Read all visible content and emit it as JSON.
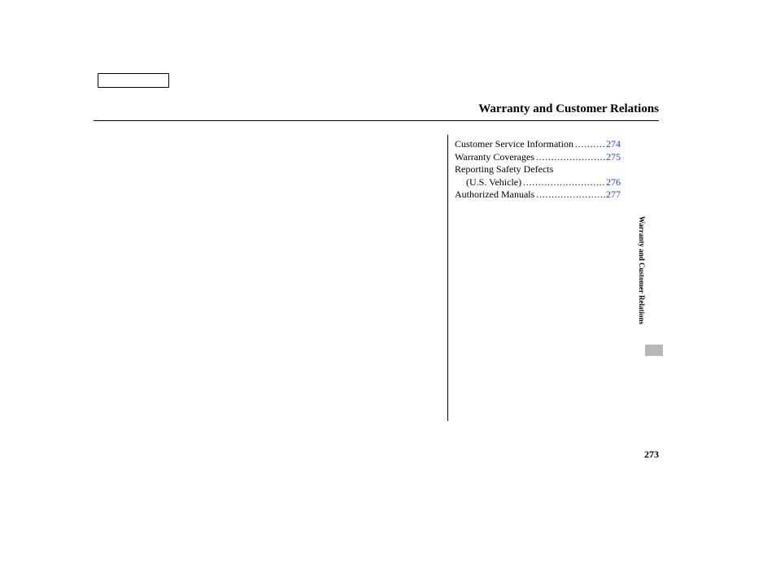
{
  "title": "Warranty and Customer Relations",
  "toc": {
    "items": [
      {
        "label": "Customer Service Information",
        "page": "274",
        "indent": false,
        "dots": true
      },
      {
        "label": "Warranty Coverages",
        "page": "275",
        "indent": false,
        "dots": true
      },
      {
        "label": "Reporting Safety Defects",
        "page": "",
        "indent": false,
        "dots": false
      },
      {
        "label": "(U.S. Vehicle)",
        "page": "276",
        "indent": true,
        "dots": true
      },
      {
        "label": "Authorized Manuals",
        "page": "277",
        "indent": false,
        "dots": true
      }
    ]
  },
  "side_label": "Warranty and Customer Relations",
  "page_number": "273",
  "colors": {
    "link": "#1a3fd6",
    "tab": "#b7b7b7",
    "text": "#000000",
    "background": "#ffffff"
  },
  "typography": {
    "title_fontsize": 15,
    "body_fontsize": 12,
    "side_fontsize": 9,
    "font_family": "Georgia, serif"
  }
}
